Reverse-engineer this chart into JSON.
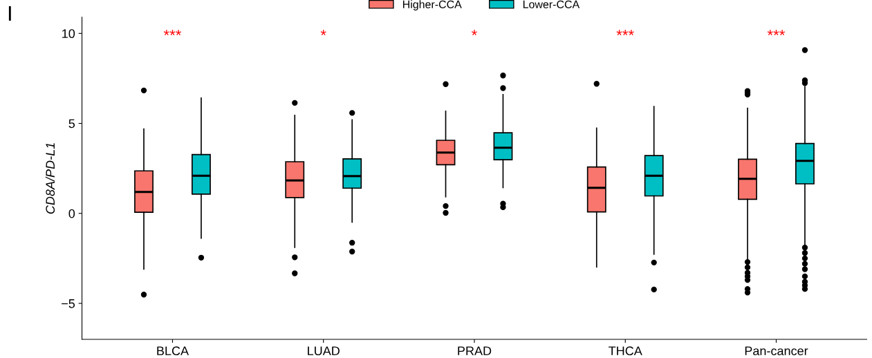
{
  "chart_data": {
    "type": "box",
    "ylabel": "CD8A/PD-L1",
    "categories": [
      "BLCA",
      "LUAD",
      "PRAD",
      "THCA",
      "Pan-cancer"
    ],
    "ylim": [
      -7,
      10.9
    ],
    "yticks": [
      {
        "value": -5,
        "label": "−5"
      },
      0,
      5,
      10
    ],
    "legend": "top",
    "grid": false,
    "annotations": [
      "I",
      "***",
      "*",
      "*",
      "***",
      "***"
    ],
    "series": [
      {
        "name": "Higher-CCA",
        "color": "#f8766d",
        "boxes": [
          {
            "low": -3.1,
            "q1": 0.06,
            "median": 1.19,
            "q3": 2.36,
            "high": 4.69,
            "outliers": [
              6.83,
              -4.51
            ]
          },
          {
            "low": -1.89,
            "q1": 0.88,
            "median": 1.83,
            "q3": 2.87,
            "high": 5.45,
            "outliers": [
              6.14,
              -2.44,
              -3.33
            ]
          },
          {
            "low": 0.92,
            "q1": 2.7,
            "median": 3.38,
            "q3": 4.06,
            "high": 5.68,
            "outliers": [
              7.18,
              0.41,
              0.03
            ]
          },
          {
            "low": -2.98,
            "q1": 0.08,
            "median": 1.42,
            "q3": 2.58,
            "high": 4.74,
            "outliers": [
              7.2
            ]
          },
          {
            "low": -2.59,
            "q1": 0.78,
            "median": 1.92,
            "q3": 3.01,
            "high": 5.84,
            "outliers": [
              6.6,
              6.7,
              6.8,
              -2.7,
              -3.0,
              -3.3,
              -3.5,
              -3.7,
              -4.2,
              -4.4
            ]
          }
        ]
      },
      {
        "name": "Lower-CCA",
        "color": "#00bfc4",
        "boxes": [
          {
            "low": -1.38,
            "q1": 1.07,
            "median": 2.09,
            "q3": 3.27,
            "high": 6.41,
            "outliers": [
              -2.46
            ]
          },
          {
            "low": -0.49,
            "q1": 1.4,
            "median": 2.07,
            "q3": 3.03,
            "high": 5.2,
            "outliers": [
              5.58,
              -1.63,
              -2.12
            ]
          },
          {
            "low": 1.43,
            "q1": 2.98,
            "median": 3.65,
            "q3": 4.48,
            "high": 6.6,
            "outliers": [
              7.66,
              6.96,
              0.54,
              0.34
            ]
          },
          {
            "low": -2.27,
            "q1": 0.97,
            "median": 2.09,
            "q3": 3.21,
            "high": 5.94,
            "outliers": [
              -2.73,
              -4.23
            ]
          },
          {
            "low": -1.76,
            "q1": 1.64,
            "median": 2.92,
            "q3": 3.88,
            "high": 7.05,
            "outliers": [
              9.07,
              7.39,
              7.24,
              -1.9,
              -2.2,
              -2.5,
              -2.8,
              -3.1,
              -3.5,
              -3.8,
              -4.0,
              -4.2
            ]
          }
        ]
      }
    ]
  }
}
